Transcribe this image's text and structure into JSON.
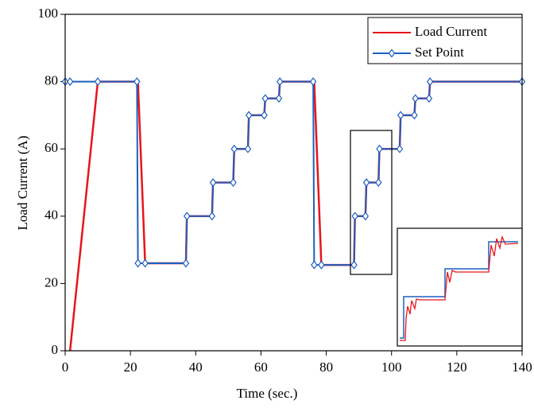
{
  "chart_data": {
    "type": "line",
    "x_label": "Time (sec.)",
    "y_label": "Load Current (A)",
    "x": [
      0,
      1.5,
      10,
      22,
      22.3,
      24.5,
      37,
      37.3,
      45,
      45.3,
      51.5,
      51.8,
      56,
      56.3,
      61,
      61.3,
      65.5,
      65.8,
      76,
      76.3,
      78.5,
      88.5,
      88.8,
      92,
      92.3,
      96,
      96.3,
      102.5,
      102.8,
      107,
      107.3,
      111.5,
      111.8,
      140
    ],
    "series": [
      {
        "name": "Load Current",
        "color": "#e8141b",
        "marker": false,
        "values": [
          null,
          0,
          80,
          80,
          80,
          26,
          26,
          40,
          40,
          50,
          50,
          60,
          60,
          70,
          70,
          75,
          75,
          80,
          80,
          80,
          25.5,
          25.5,
          40,
          40,
          50,
          50,
          60,
          60,
          70,
          70,
          75,
          75,
          80,
          80
        ]
      },
      {
        "name": "Set Point",
        "color": "#1f5fbf",
        "marker": true,
        "values": [
          80,
          80,
          80,
          80,
          26,
          26,
          26,
          40,
          40,
          50,
          50,
          60,
          60,
          70,
          70,
          75,
          75,
          80,
          80,
          25.5,
          25.5,
          25.5,
          40,
          40,
          50,
          50,
          60,
          60,
          70,
          70,
          75,
          75,
          80,
          80
        ]
      }
    ],
    "xlim": [
      0,
      140
    ],
    "xticks": [
      0,
      20,
      40,
      60,
      80,
      100,
      120,
      140
    ],
    "ylim": [
      0,
      100
    ],
    "yticks": [
      0,
      20,
      40,
      60,
      80,
      100
    ],
    "legend": "upper-right"
  }
}
